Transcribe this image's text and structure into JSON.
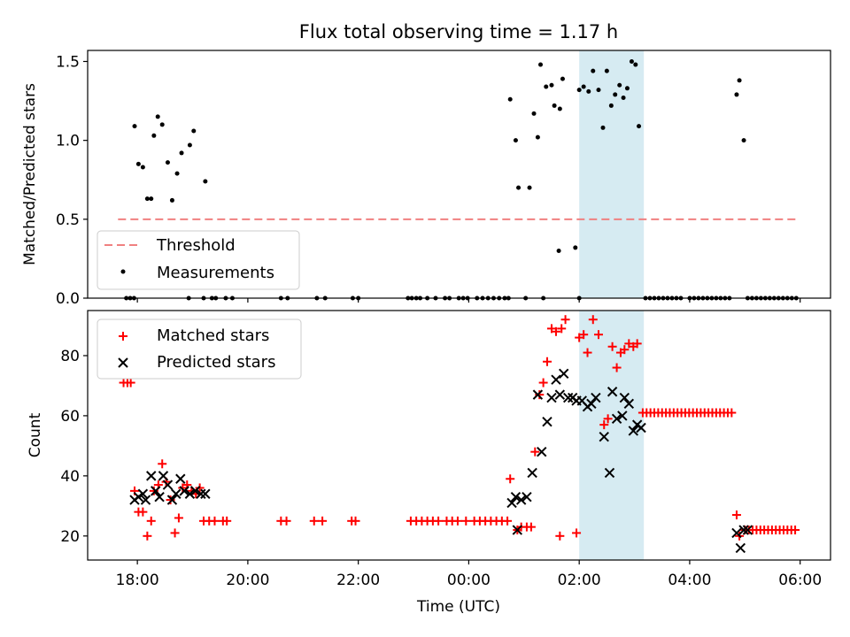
{
  "figure_title": "Flux total observing time = 1.17 h",
  "colors": {
    "threshold": "#f08080",
    "measurements": "#000000",
    "matched": "#ff0000",
    "predicted": "#000000",
    "highlight": "#add8e6"
  },
  "chart_data": [
    {
      "type": "scatter",
      "panel": "top",
      "ylabel": "Matched/Predicted stars",
      "xlabel": "",
      "xlim": [
        17.1,
        6.55
      ],
      "ylim": [
        0,
        1.57
      ],
      "yticks": [
        0.0,
        0.5,
        1.0,
        1.5
      ],
      "ytick_labels": [
        "0.0",
        "0.5",
        "1.0",
        "1.5"
      ],
      "highlight_span": [
        2.0,
        3.17
      ],
      "legend": {
        "position": "lower-left",
        "threshold_label": "Threshold",
        "measurements_label": "Measurements"
      },
      "threshold": {
        "value": 0.5,
        "x_range": [
          17.65,
          5.93
        ]
      },
      "measurements": [
        [
          17.8,
          0
        ],
        [
          17.87,
          0
        ],
        [
          17.94,
          0
        ],
        [
          17.95,
          1.09
        ],
        [
          18.02,
          0.85
        ],
        [
          18.1,
          0.83
        ],
        [
          18.18,
          0.63
        ],
        [
          18.25,
          0.63
        ],
        [
          18.3,
          1.03
        ],
        [
          18.37,
          1.15
        ],
        [
          18.45,
          1.1
        ],
        [
          18.55,
          0.86
        ],
        [
          18.63,
          0.62
        ],
        [
          18.72,
          0.79
        ],
        [
          18.8,
          0.92
        ],
        [
          18.95,
          0.97
        ],
        [
          19.02,
          1.06
        ],
        [
          19.23,
          0.74
        ],
        [
          18.93,
          0
        ],
        [
          19.2,
          0
        ],
        [
          19.35,
          0
        ],
        [
          19.42,
          0
        ],
        [
          19.6,
          0
        ],
        [
          19.72,
          0
        ],
        [
          20.6,
          0
        ],
        [
          20.72,
          0
        ],
        [
          21.25,
          0
        ],
        [
          21.4,
          0
        ],
        [
          21.9,
          0
        ],
        [
          22.0,
          0
        ],
        [
          22.9,
          0
        ],
        [
          22.97,
          0
        ],
        [
          23.05,
          0
        ],
        [
          23.12,
          0
        ],
        [
          23.25,
          0
        ],
        [
          23.4,
          0
        ],
        [
          23.57,
          0
        ],
        [
          23.65,
          0
        ],
        [
          23.82,
          0
        ],
        [
          23.9,
          0
        ],
        [
          23.98,
          0
        ],
        [
          24.15,
          0
        ],
        [
          24.25,
          0
        ],
        [
          24.35,
          0
        ],
        [
          24.45,
          0
        ],
        [
          24.55,
          0
        ],
        [
          24.65,
          0
        ],
        [
          24.72,
          0
        ],
        [
          25.03,
          0
        ],
        [
          25.35,
          0
        ],
        [
          26.0,
          0
        ],
        [
          24.75,
          1.26
        ],
        [
          24.85,
          1.0
        ],
        [
          24.9,
          0.7
        ],
        [
          25.1,
          0.7
        ],
        [
          25.18,
          1.17
        ],
        [
          25.25,
          1.02
        ],
        [
          25.3,
          1.48
        ],
        [
          25.4,
          1.34
        ],
        [
          25.5,
          1.35
        ],
        [
          25.55,
          1.22
        ],
        [
          25.65,
          1.2
        ],
        [
          25.7,
          1.39
        ],
        [
          25.63,
          0.3
        ],
        [
          25.93,
          0.32
        ],
        [
          26.0,
          1.32
        ],
        [
          26.08,
          1.34
        ],
        [
          26.17,
          1.31
        ],
        [
          26.25,
          1.44
        ],
        [
          26.35,
          1.32
        ],
        [
          26.43,
          1.08
        ],
        [
          26.5,
          1.44
        ],
        [
          26.58,
          1.22
        ],
        [
          26.65,
          1.29
        ],
        [
          26.73,
          1.35
        ],
        [
          26.8,
          1.27
        ],
        [
          26.87,
          1.33
        ],
        [
          26.95,
          1.5
        ],
        [
          27.02,
          1.48
        ],
        [
          27.08,
          1.09
        ],
        [
          27.2,
          0
        ],
        [
          27.28,
          0
        ],
        [
          27.36,
          0
        ],
        [
          27.44,
          0
        ],
        [
          27.52,
          0
        ],
        [
          27.6,
          0
        ],
        [
          27.68,
          0
        ],
        [
          27.76,
          0
        ],
        [
          27.84,
          0
        ],
        [
          28.0,
          0
        ],
        [
          28.08,
          0
        ],
        [
          28.16,
          0
        ],
        [
          28.24,
          0
        ],
        [
          28.32,
          0
        ],
        [
          28.4,
          0
        ],
        [
          28.48,
          0
        ],
        [
          28.56,
          0
        ],
        [
          28.64,
          0
        ],
        [
          28.72,
          0
        ],
        [
          28.85,
          1.29
        ],
        [
          28.9,
          1.38
        ],
        [
          28.98,
          1.0
        ],
        [
          29.05,
          0
        ],
        [
          29.13,
          0
        ],
        [
          29.21,
          0
        ],
        [
          29.29,
          0
        ],
        [
          29.37,
          0
        ],
        [
          29.45,
          0
        ],
        [
          29.53,
          0
        ],
        [
          29.61,
          0
        ],
        [
          29.69,
          0
        ],
        [
          29.77,
          0
        ],
        [
          29.85,
          0
        ],
        [
          29.93,
          0
        ]
      ]
    },
    {
      "type": "scatter",
      "panel": "bottom",
      "ylabel": "Count",
      "xlabel": "Time (UTC)",
      "xlim": [
        17.1,
        6.55
      ],
      "ylim": [
        12,
        95
      ],
      "yticks": [
        20,
        40,
        60,
        80
      ],
      "ytick_labels": [
        "20",
        "40",
        "60",
        "80"
      ],
      "xticks": [
        18,
        20,
        22,
        0,
        2,
        4,
        6
      ],
      "xtick_labels": [
        "18:00",
        "20:00",
        "22:00",
        "00:00",
        "02:00",
        "04:00",
        "06:00"
      ],
      "highlight_span": [
        2.0,
        3.17
      ],
      "legend": {
        "position": "top-left",
        "matched_label": "Matched stars",
        "predicted_label": "Predicted stars"
      },
      "matched": [
        [
          17.75,
          71
        ],
        [
          17.82,
          71
        ],
        [
          17.88,
          71
        ],
        [
          17.95,
          35
        ],
        [
          18.02,
          28
        ],
        [
          18.1,
          28
        ],
        [
          18.18,
          20
        ],
        [
          18.25,
          25
        ],
        [
          18.3,
          35
        ],
        [
          18.38,
          37
        ],
        [
          18.45,
          44
        ],
        [
          18.52,
          38
        ],
        [
          18.6,
          32
        ],
        [
          18.68,
          21
        ],
        [
          18.75,
          26
        ],
        [
          18.82,
          36
        ],
        [
          18.9,
          37
        ],
        [
          18.98,
          35
        ],
        [
          19.06,
          34
        ],
        [
          19.13,
          36
        ],
        [
          19.2,
          25
        ],
        [
          19.3,
          25
        ],
        [
          19.4,
          25
        ],
        [
          19.55,
          25
        ],
        [
          19.62,
          25
        ],
        [
          20.6,
          25
        ],
        [
          20.7,
          25
        ],
        [
          21.2,
          25
        ],
        [
          21.35,
          25
        ],
        [
          21.88,
          25
        ],
        [
          21.95,
          25
        ],
        [
          22.95,
          25
        ],
        [
          23.05,
          25
        ],
        [
          23.15,
          25
        ],
        [
          23.25,
          25
        ],
        [
          23.35,
          25
        ],
        [
          23.45,
          25
        ],
        [
          23.6,
          25
        ],
        [
          23.7,
          25
        ],
        [
          23.8,
          25
        ],
        [
          23.95,
          25
        ],
        [
          24.1,
          25
        ],
        [
          24.2,
          25
        ],
        [
          24.3,
          25
        ],
        [
          24.4,
          25
        ],
        [
          24.5,
          25
        ],
        [
          24.6,
          25
        ],
        [
          24.7,
          25
        ],
        [
          24.75,
          39
        ],
        [
          24.88,
          22
        ],
        [
          24.95,
          23
        ],
        [
          25.05,
          23
        ],
        [
          25.13,
          23
        ],
        [
          25.2,
          48
        ],
        [
          25.28,
          67
        ],
        [
          25.35,
          71
        ],
        [
          25.42,
          78
        ],
        [
          25.5,
          89
        ],
        [
          25.58,
          88
        ],
        [
          25.68,
          89
        ],
        [
          25.75,
          92
        ],
        [
          25.65,
          20
        ],
        [
          25.95,
          21
        ],
        [
          26.0,
          86
        ],
        [
          26.08,
          87
        ],
        [
          26.15,
          81
        ],
        [
          26.25,
          92
        ],
        [
          26.35,
          87
        ],
        [
          26.45,
          57
        ],
        [
          26.52,
          59
        ],
        [
          26.6,
          83
        ],
        [
          26.68,
          76
        ],
        [
          26.75,
          81
        ],
        [
          26.82,
          82
        ],
        [
          26.9,
          84
        ],
        [
          26.98,
          83
        ],
        [
          27.05,
          84
        ],
        [
          27.15,
          61
        ],
        [
          27.22,
          61
        ],
        [
          27.29,
          61
        ],
        [
          27.36,
          61
        ],
        [
          27.43,
          61
        ],
        [
          27.5,
          61
        ],
        [
          27.57,
          61
        ],
        [
          27.64,
          61
        ],
        [
          27.71,
          61
        ],
        [
          27.78,
          61
        ],
        [
          27.85,
          61
        ],
        [
          27.92,
          61
        ],
        [
          27.99,
          61
        ],
        [
          28.06,
          61
        ],
        [
          28.13,
          61
        ],
        [
          28.2,
          61
        ],
        [
          28.27,
          61
        ],
        [
          28.34,
          61
        ],
        [
          28.41,
          61
        ],
        [
          28.48,
          61
        ],
        [
          28.55,
          61
        ],
        [
          28.62,
          61
        ],
        [
          28.69,
          61
        ],
        [
          28.76,
          61
        ],
        [
          28.85,
          27
        ],
        [
          28.9,
          20
        ],
        [
          29.0,
          22
        ],
        [
          29.07,
          22
        ],
        [
          29.14,
          22
        ],
        [
          29.21,
          22
        ],
        [
          29.28,
          22
        ],
        [
          29.35,
          22
        ],
        [
          29.42,
          22
        ],
        [
          29.49,
          22
        ],
        [
          29.56,
          22
        ],
        [
          29.63,
          22
        ],
        [
          29.7,
          22
        ],
        [
          29.77,
          22
        ],
        [
          29.84,
          22
        ],
        [
          29.91,
          22
        ]
      ],
      "predicted": [
        [
          17.95,
          32
        ],
        [
          18.02,
          33
        ],
        [
          18.1,
          34
        ],
        [
          18.15,
          32
        ],
        [
          18.25,
          40
        ],
        [
          18.33,
          35
        ],
        [
          18.4,
          33
        ],
        [
          18.47,
          40
        ],
        [
          18.55,
          37
        ],
        [
          18.63,
          32
        ],
        [
          18.7,
          34
        ],
        [
          18.78,
          39
        ],
        [
          18.85,
          35
        ],
        [
          18.95,
          34
        ],
        [
          19.05,
          35
        ],
        [
          19.15,
          34
        ],
        [
          19.23,
          34
        ],
        [
          24.78,
          31
        ],
        [
          24.85,
          33
        ],
        [
          24.88,
          22
        ],
        [
          24.95,
          32
        ],
        [
          25.05,
          33
        ],
        [
          25.15,
          41
        ],
        [
          25.25,
          67
        ],
        [
          25.32,
          48
        ],
        [
          25.42,
          58
        ],
        [
          25.5,
          66
        ],
        [
          25.58,
          72
        ],
        [
          25.65,
          67
        ],
        [
          25.72,
          74
        ],
        [
          25.8,
          66
        ],
        [
          25.88,
          66
        ],
        [
          25.95,
          65
        ],
        [
          26.05,
          65
        ],
        [
          26.15,
          63
        ],
        [
          26.22,
          64
        ],
        [
          26.3,
          66
        ],
        [
          26.45,
          53
        ],
        [
          26.55,
          41
        ],
        [
          26.6,
          68
        ],
        [
          26.68,
          59
        ],
        [
          26.78,
          60
        ],
        [
          26.82,
          66
        ],
        [
          26.9,
          64
        ],
        [
          26.98,
          55
        ],
        [
          27.05,
          57
        ],
        [
          27.12,
          56
        ],
        [
          28.85,
          21
        ],
        [
          28.92,
          16
        ],
        [
          28.98,
          22
        ],
        [
          29.05,
          22
        ]
      ]
    }
  ]
}
